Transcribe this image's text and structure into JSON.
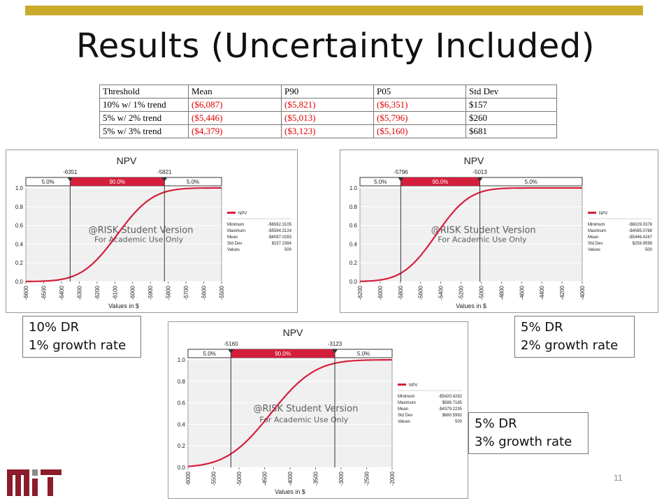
{
  "slide": {
    "title": "Results (Uncertainty Included)",
    "page_number": "11",
    "accent_color": "#c9aa2c"
  },
  "table": {
    "headers": [
      "Threshold",
      "Mean",
      "P90",
      "P05",
      "Std Dev"
    ],
    "rows": [
      [
        "10% w/ 1% trend",
        "($6,087)",
        "($5,821)",
        "($6,351)",
        "$157"
      ],
      [
        "5% w/ 2% trend",
        "($5,446)",
        "($5,013)",
        "($5,796)",
        "$260"
      ],
      [
        "5% w/ 3% trend",
        "($4,379)",
        "($3,123)",
        "($5,160)",
        "$681"
      ]
    ]
  },
  "labels": [
    {
      "line1": "10% DR",
      "line2": "1% growth rate"
    },
    {
      "line1": "5% DR",
      "line2": "2% growth rate"
    },
    {
      "line1": "5% DR",
      "line2": "3% growth rate"
    }
  ],
  "chart_data": [
    {
      "type": "line",
      "title": "NPV",
      "xlabel": "Values in $",
      "xlim": [
        -6600,
        -5500
      ],
      "x_ticks": [
        -6600,
        -6500,
        -6400,
        -6300,
        -6200,
        -6100,
        -6000,
        -5900,
        -5800,
        -5700,
        -5600,
        -5500
      ],
      "y_ticks": [
        0.0,
        0.2,
        0.4,
        0.6,
        0.8,
        1.0
      ],
      "ylim": [
        0,
        1
      ],
      "markers": {
        "left": -6351,
        "right": -5821,
        "left_label": "-6351",
        "right_label": "-5821"
      },
      "bands": [
        "5.0%",
        "90.0%",
        "5.0%"
      ],
      "mean": -6087.0283,
      "std": 157.2384,
      "series": [
        {
          "name": "NPV",
          "color": "#d41f3c"
        }
      ],
      "stats": [
        [
          "Minimum",
          "-$6592.3105"
        ],
        [
          "Maximum",
          "-$5594.3124"
        ],
        [
          "Mean",
          "-$6087.0283"
        ],
        [
          "Std Dev",
          "$157.2384"
        ],
        [
          "Values",
          "500"
        ]
      ],
      "watermark": [
        "@RISK Student Version",
        "For Academic Use Only"
      ],
      "grid": true
    },
    {
      "type": "line",
      "title": "NPV",
      "xlabel": "Values in $",
      "xlim": [
        -6200,
        -4000
      ],
      "x_ticks": [
        -6200,
        -6000,
        -5800,
        -5600,
        -5400,
        -5200,
        -5000,
        -4800,
        -4600,
        -4400,
        -4200,
        -4000
      ],
      "y_ticks": [
        0.0,
        0.2,
        0.4,
        0.6,
        0.8,
        1.0
      ],
      "ylim": [
        0,
        1
      ],
      "markers": {
        "left": -5796,
        "right": -5013,
        "left_label": "-5796",
        "right_label": "-5013"
      },
      "bands": [
        "5.0%",
        "90.0%",
        "5.0%"
      ],
      "mean": -5446.4247,
      "std": 259.9598,
      "series": [
        {
          "name": "NPV",
          "color": "#d41f3c"
        }
      ],
      "stats": [
        [
          "Minimum",
          "-$6029.0376"
        ],
        [
          "Maximum",
          "-$4085.0788"
        ],
        [
          "Mean",
          "-$5446.4247"
        ],
        [
          "Std Dev",
          "$259.9598"
        ],
        [
          "Values",
          "500"
        ]
      ],
      "watermark": [
        "@RISK Student Version",
        "For Academic Use Only"
      ],
      "grid": true
    },
    {
      "type": "line",
      "title": "NPV",
      "xlabel": "Values in $",
      "xlim": [
        -6000,
        -2000
      ],
      "x_ticks": [
        -6000,
        -5500,
        -5000,
        -4500,
        -4000,
        -3500,
        -3000,
        -2500,
        -2000
      ],
      "y_ticks": [
        0.0,
        0.2,
        0.4,
        0.6,
        0.8,
        1.0
      ],
      "ylim": [
        0,
        1
      ],
      "markers": {
        "left": -5160,
        "right": -3123,
        "left_label": "-5160",
        "right_label": "-3123"
      },
      "bands": [
        "5.0%",
        "90.0%",
        "5.0%"
      ],
      "mean": -4379.2235,
      "std": 680.5992,
      "series": [
        {
          "name": "NPV",
          "color": "#d41f3c"
        }
      ],
      "stats": [
        [
          "Minimum",
          "-$5420.4292"
        ],
        [
          "Maximum",
          "$586.7185"
        ],
        [
          "Mean",
          "-$4379.2235"
        ],
        [
          "Std Dev",
          "$680.5992"
        ],
        [
          "Values",
          "500"
        ]
      ],
      "watermark": [
        "@RISK Student Version",
        "For Academic Use Only"
      ],
      "grid": true
    }
  ]
}
